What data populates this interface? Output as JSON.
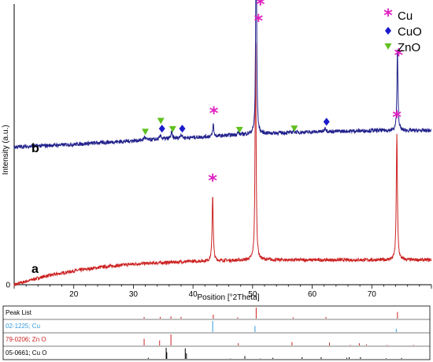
{
  "chart_data": {
    "type": "line",
    "title": "",
    "xlabel": "Position [°2Theta]",
    "ylabel": "Intensity (a.u.)",
    "xlim": [
      10,
      80
    ],
    "xticks": [
      20,
      30,
      40,
      50,
      60,
      70
    ],
    "y_tick_label": "0",
    "curve_labels": [
      "a",
      "b"
    ],
    "colors": {
      "a": "#cc2222",
      "b": "#22228c",
      "Cu": "#e020c0",
      "CuO": "#1a1acc",
      "ZnO": "#60c020"
    },
    "legend": {
      "placement": "top-right",
      "entries": [
        {
          "label": "Cu",
          "marker": "asterisk",
          "icon": "asterisk-icon"
        },
        {
          "label": "CuO",
          "marker": "diamond",
          "icon": "diamond-icon"
        },
        {
          "label": "ZnO",
          "marker": "triangle-down",
          "icon": "triangle-down-icon"
        }
      ]
    },
    "series": [
      {
        "name": "a",
        "baseline": [
          [
            10,
            0.0
          ],
          [
            15,
            0.03
          ],
          [
            20,
            0.05
          ],
          [
            25,
            0.065
          ],
          [
            30,
            0.075
          ],
          [
            40,
            0.085
          ],
          [
            50,
            0.09
          ],
          [
            60,
            0.09
          ],
          [
            70,
            0.09
          ],
          [
            80,
            0.09
          ]
        ],
        "peaks": [
          {
            "x": 43.3,
            "h": 0.24,
            "w": 0.22
          },
          {
            "x": 50.5,
            "h": 0.82,
            "w": 0.2
          },
          {
            "x": 74.2,
            "h": 0.46,
            "w": 0.22
          }
        ],
        "markers": [
          {
            "x": 43.3,
            "y": 0.38,
            "phase": "Cu"
          },
          {
            "x": 51.0,
            "y": 0.96,
            "phase": "Cu"
          },
          {
            "x": 74.2,
            "y": 0.61,
            "phase": "Cu"
          }
        ]
      },
      {
        "name": "b",
        "baseline": [
          [
            10,
            0.5
          ],
          [
            20,
            0.51
          ],
          [
            30,
            0.523
          ],
          [
            40,
            0.535
          ],
          [
            50,
            0.548
          ],
          [
            60,
            0.555
          ],
          [
            70,
            0.56
          ],
          [
            80,
            0.56
          ]
        ],
        "peaks": [
          {
            "x": 31.9,
            "h": 0.012,
            "w": 0.3
          },
          {
            "x": 34.6,
            "h": 0.015,
            "w": 0.3
          },
          {
            "x": 36.4,
            "h": 0.022,
            "w": 0.3
          },
          {
            "x": 38.0,
            "h": 0.015,
            "w": 0.3
          },
          {
            "x": 43.4,
            "h": 0.045,
            "w": 0.2
          },
          {
            "x": 47.6,
            "h": 0.008,
            "w": 0.3
          },
          {
            "x": 50.6,
            "h": 0.82,
            "w": 0.18
          },
          {
            "x": 56.9,
            "h": 0.008,
            "w": 0.3
          },
          {
            "x": 62.2,
            "h": 0.015,
            "w": 0.3
          },
          {
            "x": 74.3,
            "h": 0.3,
            "w": 0.2
          }
        ],
        "markers": [
          {
            "x": 32.0,
            "y": 0.555,
            "phase": "ZnO"
          },
          {
            "x": 34.6,
            "y": 0.595,
            "phase": "ZnO"
          },
          {
            "x": 36.6,
            "y": 0.565,
            "phase": "ZnO"
          },
          {
            "x": 34.8,
            "y": 0.567,
            "phase": "CuO"
          },
          {
            "x": 38.2,
            "y": 0.567,
            "phase": "CuO"
          },
          {
            "x": 43.5,
            "y": 0.625,
            "phase": "Cu"
          },
          {
            "x": 47.8,
            "y": 0.562,
            "phase": "ZnO"
          },
          {
            "x": 51.3,
            "y": 1.02,
            "phase": "Cu"
          },
          {
            "x": 57.0,
            "y": 0.567,
            "phase": "ZnO"
          },
          {
            "x": 62.4,
            "y": 0.592,
            "phase": "CuO"
          },
          {
            "x": 74.5,
            "y": 0.835,
            "phase": "Cu"
          }
        ]
      }
    ],
    "reference_patterns": [
      {
        "label": "Peak List",
        "color": "#cc2222",
        "lines": [
          [
            31.8,
            0.15
          ],
          [
            34.5,
            0.15
          ],
          [
            36.3,
            0.2
          ],
          [
            38.0,
            0.15
          ],
          [
            43.4,
            0.35
          ],
          [
            47.5,
            0.12
          ],
          [
            50.6,
            1.0
          ],
          [
            56.8,
            0.12
          ],
          [
            62.3,
            0.15
          ],
          [
            74.3,
            0.6
          ]
        ]
      },
      {
        "label": "02-1225; Cu",
        "color": "#3399dd",
        "lines": [
          [
            43.3,
            1.0
          ],
          [
            50.4,
            0.55
          ],
          [
            74.1,
            0.3
          ]
        ]
      },
      {
        "label": "79-0206; Zn O",
        "color": "#cc2222",
        "lines": [
          [
            31.8,
            0.6
          ],
          [
            34.4,
            0.45
          ],
          [
            36.3,
            1.0
          ],
          [
            47.6,
            0.2
          ],
          [
            56.6,
            0.3
          ],
          [
            62.9,
            0.25
          ],
          [
            66.4,
            0.05
          ],
          [
            67.9,
            0.2
          ],
          [
            69.1,
            0.1
          ],
          [
            72.6,
            0.05
          ],
          [
            77.0,
            0.05
          ]
        ]
      },
      {
        "label": "05-0661; Cu O",
        "color": "#000000",
        "lines": [
          [
            32.5,
            0.1
          ],
          [
            35.5,
            1.0
          ],
          [
            35.6,
            0.6
          ],
          [
            38.7,
            0.95
          ],
          [
            38.9,
            0.5
          ],
          [
            46.3,
            0.03
          ],
          [
            48.7,
            0.25
          ],
          [
            51.3,
            0.03
          ],
          [
            53.4,
            0.1
          ],
          [
            58.3,
            0.15
          ],
          [
            61.5,
            0.15
          ],
          [
            65.8,
            0.1
          ],
          [
            66.2,
            0.15
          ],
          [
            68.1,
            0.15
          ],
          [
            72.4,
            0.05
          ],
          [
            75.0,
            0.08
          ]
        ]
      }
    ]
  }
}
